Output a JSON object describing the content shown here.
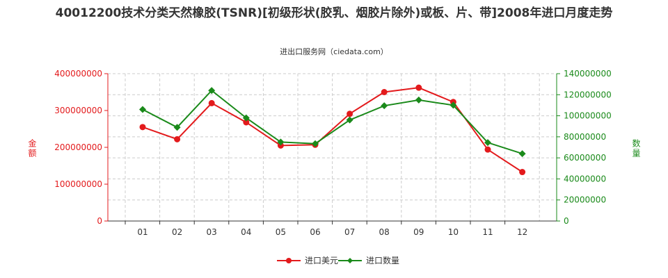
{
  "title": "40012200技术分类天然橡胶(TSNR)[初级形状(胶乳、烟胶片除外)或板、片、带]2008年进口月度走势",
  "source": "进出口服务网（ciedata.com）",
  "colors": {
    "amount": "#e31a1c",
    "quantity": "#1a8a1a"
  },
  "chart_data": {
    "type": "line",
    "title": "40012200技术分类天然橡胶(TSNR)[初级形状(胶乳、烟胶片除外)或板、片、带]2008年进口月度走势",
    "categories": [
      "01",
      "02",
      "03",
      "04",
      "05",
      "06",
      "07",
      "08",
      "09",
      "10",
      "11",
      "12"
    ],
    "y_left_label": "金额",
    "y_right_label": "数量",
    "y_left_range": [
      0,
      400000000
    ],
    "y_right_range": [
      0,
      140000000
    ],
    "y_left_ticks": [
      "0",
      "100000000",
      "200000000",
      "300000000",
      "400000000"
    ],
    "y_right_ticks": [
      "0",
      "20000000",
      "40000000",
      "60000000",
      "80000000",
      "100000000",
      "120000000",
      "140000000"
    ],
    "grid": true,
    "legend_position": "bottom",
    "series": [
      {
        "name": "进口美元",
        "axis": "left",
        "values": [
          255000000,
          222000000,
          320000000,
          268000000,
          205000000,
          207000000,
          291000000,
          350000000,
          362000000,
          323000000,
          194000000,
          133000000
        ]
      },
      {
        "name": "进口数量",
        "axis": "right",
        "values": [
          106000000,
          89000000,
          124000000,
          98000000,
          75000000,
          73500000,
          96000000,
          109500000,
          115000000,
          110000000,
          74500000,
          64000000
        ]
      }
    ]
  }
}
